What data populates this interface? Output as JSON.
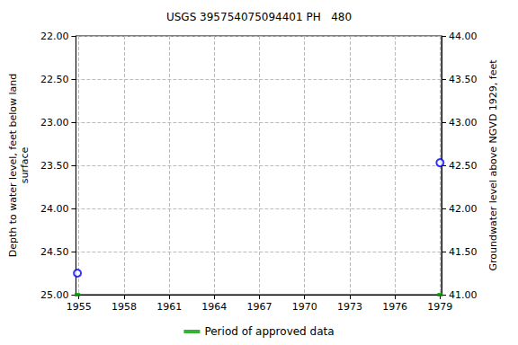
{
  "chart_data": {
    "type": "scatter",
    "title": "USGS 395754075094401 PH   480",
    "y_label": "Depth to water level, feet below land\nsurface",
    "y2_label": "Groundwater level above NGVD 1929, feet",
    "xlim": [
      1954.8,
      1979.1
    ],
    "xticks": [
      1955,
      1958,
      1961,
      1964,
      1967,
      1970,
      1973,
      1976,
      1979
    ],
    "ylim": [
      25,
      22
    ],
    "yticks": [
      {
        "value": 22,
        "label": "22.00"
      },
      {
        "value": 22.5,
        "label": "22.50"
      },
      {
        "value": 23,
        "label": "23.00"
      },
      {
        "value": 23.5,
        "label": "23.50"
      },
      {
        "value": 24,
        "label": "24.00"
      },
      {
        "value": 24.5,
        "label": "24.50"
      },
      {
        "value": 25,
        "label": "25.00"
      }
    ],
    "y2lim": [
      41,
      44
    ],
    "y2ticks": [
      {
        "value": 41,
        "label": "41.00"
      },
      {
        "value": 41.5,
        "label": "41.50"
      },
      {
        "value": 42,
        "label": "42.00"
      },
      {
        "value": 42.5,
        "label": "42.50"
      },
      {
        "value": 43,
        "label": "43.00"
      },
      {
        "value": 43.5,
        "label": "43.50"
      },
      {
        "value": 44,
        "label": "44.00"
      }
    ],
    "grid": true,
    "legend": "bottom",
    "series": [
      {
        "type": "scatter",
        "color": "#0000ff",
        "marker": "circle",
        "x": [
          1954.9,
          1979.0
        ],
        "values": [
          24.75,
          23.47
        ]
      },
      {
        "name": "Period of approved data",
        "type": "scatter",
        "color": "#00a000",
        "marker": "rect",
        "x": [
          1954.9,
          1979.0
        ],
        "values": [
          25,
          25
        ]
      }
    ]
  }
}
